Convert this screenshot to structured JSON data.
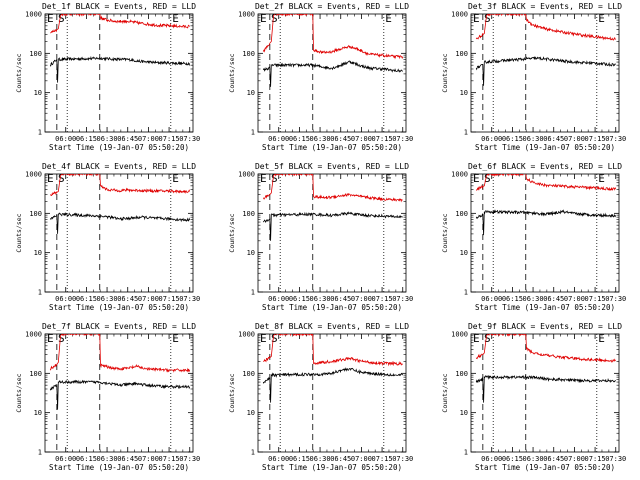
{
  "chart_data": [
    {
      "type": "line",
      "title": "Det_1f BLACK = Events, RED = LLD",
      "xlabel": "Start Time (19-Jan-07 05:50:20)",
      "ylabel": "Counts/sec",
      "x_ticks": [
        "06:00",
        "06:15",
        "06:30",
        "06:45",
        "07:00",
        "07:15",
        "07:30"
      ],
      "y_ticks": [
        "1",
        "10",
        "100",
        "1000"
      ],
      "xlim_min": [
        0,
        100
      ],
      "ylim": [
        1,
        1000
      ],
      "y_scale": "log",
      "markers": {
        "left": "E",
        "left2": "S",
        "right": "E"
      },
      "series": [
        {
          "name": "BLACK = Events",
          "color": "#000000",
          "x": [
            3.5,
            8,
            8.5,
            9,
            37,
            44,
            50,
            56,
            65,
            75,
            85,
            93,
            97.8
          ],
          "y": [
            50,
            70,
            18,
            70,
            75,
            72,
            70,
            70,
            62,
            58,
            57,
            55,
            55
          ]
        },
        {
          "name": "RED = LLD",
          "color": "#e00000",
          "x": [
            3.5,
            8,
            9,
            10.5,
            11.5,
            37,
            37.5,
            42,
            48,
            56,
            65,
            75,
            85,
            93,
            97.8
          ],
          "y": [
            330,
            400,
            420,
            900,
            1000,
            1000,
            800,
            700,
            650,
            650,
            580,
            520,
            500,
            480,
            480
          ]
        }
      ]
    },
    {
      "type": "line",
      "title": "Det_2f BLACK = Events, RED = LLD",
      "xlabel": "Start Time (19-Jan-07 05:50:20)",
      "ylabel": "Counts/sec",
      "x_ticks": [
        "06:00",
        "06:15",
        "06:30",
        "06:45",
        "07:00",
        "07:15",
        "07:30"
      ],
      "y_ticks": [
        "1",
        "10",
        "100",
        "1000"
      ],
      "xlim_min": [
        0,
        100
      ],
      "ylim": [
        1,
        1000
      ],
      "y_scale": "log",
      "markers": {
        "left": "E",
        "left2": "S",
        "right": "E"
      },
      "series": [
        {
          "name": "BLACK = Events",
          "color": "#000000",
          "x": [
            3.5,
            8,
            8.5,
            9,
            37,
            44,
            50,
            56,
            62,
            68,
            75,
            85,
            93,
            97.8
          ],
          "y": [
            38,
            42,
            14,
            50,
            50,
            45,
            42,
            50,
            62,
            50,
            42,
            40,
            36,
            36
          ]
        },
        {
          "name": "RED = LLD",
          "color": "#e00000",
          "x": [
            3.5,
            8,
            9,
            10.5,
            11.5,
            37,
            37.5,
            44,
            50,
            56,
            62,
            68,
            75,
            85,
            93,
            97.8
          ],
          "y": [
            110,
            180,
            200,
            900,
            1000,
            1000,
            120,
            105,
            110,
            130,
            150,
            125,
            95,
            88,
            82,
            82
          ]
        }
      ]
    },
    {
      "type": "line",
      "title": "Det_3f BLACK = Events, RED = LLD",
      "xlabel": "Start Time (19-Jan-07 05:50:20)",
      "ylabel": "Counts/sec",
      "x_ticks": [
        "06:00",
        "06:15",
        "06:30",
        "06:45",
        "07:00",
        "07:15",
        "07:30"
      ],
      "y_ticks": [
        "1",
        "10",
        "100",
        "1000"
      ],
      "xlim_min": [
        0,
        100
      ],
      "ylim": [
        1,
        1000
      ],
      "y_scale": "log",
      "markers": {
        "left": "E",
        "left2": "S",
        "right": "E"
      },
      "series": [
        {
          "name": "BLACK = Events",
          "color": "#000000",
          "x": [
            3.5,
            8,
            8.5,
            9,
            37,
            44,
            50,
            56,
            65,
            75,
            85,
            93,
            97.8
          ],
          "y": [
            42,
            50,
            15,
            60,
            72,
            75,
            72,
            68,
            62,
            58,
            56,
            52,
            52
          ]
        },
        {
          "name": "RED = LLD",
          "color": "#e00000",
          "x": [
            3.5,
            8,
            9,
            10.5,
            11.5,
            37,
            37.5,
            42,
            50,
            56,
            65,
            75,
            85,
            93,
            97.8
          ],
          "y": [
            230,
            300,
            320,
            900,
            1000,
            1000,
            700,
            520,
            420,
            380,
            330,
            290,
            260,
            240,
            230
          ]
        }
      ]
    },
    {
      "type": "line",
      "title": "Det_4f BLACK = Events, RED = LLD",
      "xlabel": "Start Time (19-Jan-07 05:50:20)",
      "ylabel": "Counts/sec",
      "x_ticks": [
        "06:00",
        "06:15",
        "06:30",
        "06:45",
        "07:00",
        "07:15",
        "07:30"
      ],
      "y_ticks": [
        "1",
        "10",
        "100",
        "1000"
      ],
      "xlim_min": [
        0,
        100
      ],
      "ylim": [
        1,
        1000
      ],
      "y_scale": "log",
      "markers": {
        "left": "E",
        "left2": "S",
        "right": "E"
      },
      "series": [
        {
          "name": "BLACK = Events",
          "color": "#000000",
          "x": [
            3.5,
            8,
            8.5,
            9,
            37,
            44,
            50,
            56,
            65,
            75,
            85,
            93,
            97.8
          ],
          "y": [
            70,
            90,
            30,
            95,
            85,
            80,
            72,
            74,
            80,
            75,
            72,
            68,
            68
          ]
        },
        {
          "name": "RED = LLD",
          "color": "#e00000",
          "x": [
            3.5,
            8,
            9,
            10.5,
            11.5,
            37,
            37.5,
            42,
            50,
            56,
            65,
            75,
            85,
            93,
            97.8
          ],
          "y": [
            300,
            340,
            360,
            900,
            1000,
            1000,
            500,
            400,
            380,
            390,
            380,
            370,
            370,
            360,
            360
          ]
        }
      ]
    },
    {
      "type": "line",
      "title": "Det_5f BLACK = Events, RED = LLD",
      "xlabel": "Start Time (19-Jan-07 05:50:20)",
      "ylabel": "Counts/sec",
      "x_ticks": [
        "06:00",
        "06:15",
        "06:30",
        "06:45",
        "07:00",
        "07:15",
        "07:30"
      ],
      "y_ticks": [
        "1",
        "10",
        "100",
        "1000"
      ],
      "xlim_min": [
        0,
        100
      ],
      "ylim": [
        1,
        1000
      ],
      "y_scale": "log",
      "markers": {
        "left": "E",
        "left2": "S",
        "right": "E"
      },
      "series": [
        {
          "name": "BLACK = Events",
          "color": "#000000",
          "x": [
            3.5,
            8,
            8.5,
            9,
            37,
            44,
            50,
            56,
            62,
            68,
            75,
            85,
            93,
            97.8
          ],
          "y": [
            60,
            72,
            20,
            90,
            95,
            92,
            88,
            95,
            100,
            92,
            88,
            85,
            82,
            82
          ]
        },
        {
          "name": "RED = LLD",
          "color": "#e00000",
          "x": [
            3.5,
            8,
            9,
            10.5,
            11.5,
            37,
            37.5,
            44,
            50,
            56,
            62,
            68,
            75,
            85,
            93,
            97.8
          ],
          "y": [
            240,
            300,
            330,
            900,
            1000,
            1000,
            270,
            250,
            260,
            280,
            300,
            270,
            250,
            230,
            220,
            220
          ]
        }
      ]
    },
    {
      "type": "line",
      "title": "Det_6f BLACK = Events, RED = LLD",
      "xlabel": "Start Time (19-Jan-07 05:50:20)",
      "ylabel": "Counts/sec",
      "x_ticks": [
        "06:00",
        "06:15",
        "06:30",
        "06:45",
        "07:00",
        "07:15",
        "07:30"
      ],
      "y_ticks": [
        "1",
        "10",
        "100",
        "1000"
      ],
      "xlim_min": [
        0,
        100
      ],
      "ylim": [
        1,
        1000
      ],
      "y_scale": "log",
      "markers": {
        "left": "E",
        "left2": "S",
        "right": "E"
      },
      "series": [
        {
          "name": "BLACK = Events",
          "color": "#000000",
          "x": [
            3.5,
            8,
            8.5,
            9,
            37,
            44,
            50,
            56,
            62,
            68,
            75,
            85,
            93,
            97.8
          ],
          "y": [
            75,
            95,
            28,
            110,
            105,
            100,
            95,
            100,
            110,
            100,
            95,
            90,
            88,
            88
          ]
        },
        {
          "name": "RED = LLD",
          "color": "#e00000",
          "x": [
            3.5,
            8,
            9,
            10.5,
            11.5,
            37,
            37.5,
            42,
            50,
            56,
            65,
            75,
            85,
            93,
            97.8
          ],
          "y": [
            400,
            480,
            500,
            900,
            1000,
            1000,
            750,
            600,
            520,
            500,
            480,
            460,
            440,
            420,
            420
          ]
        }
      ]
    },
    {
      "type": "line",
      "title": "Det_7f BLACK = Events, RED = LLD",
      "xlabel": "Start Time (19-Jan-07 05:50:20)",
      "ylabel": "Counts/sec",
      "x_ticks": [
        "06:00",
        "06:15",
        "06:30",
        "06:45",
        "07:00",
        "07:15",
        "07:30"
      ],
      "y_ticks": [
        "1",
        "10",
        "100",
        "1000"
      ],
      "xlim_min": [
        0,
        100
      ],
      "ylim": [
        1,
        1000
      ],
      "y_scale": "log",
      "markers": {
        "left": "E",
        "left2": "S",
        "right": "E"
      },
      "series": [
        {
          "name": "BLACK = Events",
          "color": "#000000",
          "x": [
            3.5,
            8,
            8.5,
            9,
            37,
            44,
            50,
            56,
            62,
            68,
            75,
            85,
            93,
            97.8
          ],
          "y": [
            40,
            50,
            12,
            60,
            60,
            55,
            50,
            52,
            55,
            50,
            48,
            46,
            45,
            45
          ]
        },
        {
          "name": "RED = LLD",
          "color": "#e00000",
          "x": [
            3.5,
            8,
            9,
            10.5,
            11.5,
            37,
            37.5,
            44,
            50,
            56,
            62,
            68,
            75,
            85,
            93,
            97.8
          ],
          "y": [
            130,
            170,
            190,
            900,
            1000,
            1000,
            160,
            140,
            130,
            135,
            150,
            130,
            125,
            120,
            120,
            120
          ]
        }
      ]
    },
    {
      "type": "line",
      "title": "Det_8f BLACK = Events, RED = LLD",
      "xlabel": "Start Time (19-Jan-07 05:50:20)",
      "ylabel": "Counts/sec",
      "x_ticks": [
        "06:00",
        "06:15",
        "06:30",
        "06:45",
        "07:00",
        "07:15",
        "07:30"
      ],
      "y_ticks": [
        "1",
        "10",
        "100",
        "1000"
      ],
      "xlim_min": [
        0,
        100
      ],
      "ylim": [
        1,
        1000
      ],
      "y_scale": "log",
      "markers": {
        "left": "E",
        "left2": "S",
        "right": "E"
      },
      "series": [
        {
          "name": "BLACK = Events",
          "color": "#000000",
          "x": [
            3.5,
            8,
            8.5,
            9,
            37,
            44,
            50,
            56,
            62,
            68,
            75,
            85,
            93,
            97.8
          ],
          "y": [
            60,
            75,
            18,
            90,
            95,
            95,
            100,
            120,
            130,
            110,
            100,
            95,
            90,
            90
          ]
        },
        {
          "name": "RED = LLD",
          "color": "#e00000",
          "x": [
            3.5,
            8,
            9,
            10.5,
            11.5,
            37,
            37.5,
            44,
            50,
            56,
            62,
            68,
            75,
            85,
            93,
            97.8
          ],
          "y": [
            200,
            250,
            270,
            900,
            1000,
            1000,
            180,
            190,
            200,
            220,
            240,
            210,
            190,
            180,
            175,
            175
          ]
        }
      ]
    },
    {
      "type": "line",
      "title": "Det_9f BLACK = Events, RED = LLD",
      "xlabel": "Start Time (19-Jan-07 05:50:20)",
      "ylabel": "Counts/sec",
      "x_ticks": [
        "06:00",
        "06:15",
        "06:30",
        "06:45",
        "07:00",
        "07:15",
        "07:30"
      ],
      "y_ticks": [
        "1",
        "10",
        "100",
        "1000"
      ],
      "xlim_min": [
        0,
        100
      ],
      "ylim": [
        1,
        1000
      ],
      "y_scale": "log",
      "markers": {
        "left": "E",
        "left2": "S",
        "right": "E"
      },
      "series": [
        {
          "name": "BLACK = Events",
          "color": "#000000",
          "x": [
            3.5,
            8,
            8.5,
            9,
            37,
            44,
            50,
            56,
            65,
            75,
            85,
            93,
            97.8
          ],
          "y": [
            60,
            70,
            18,
            80,
            80,
            78,
            72,
            70,
            68,
            66,
            65,
            65,
            65
          ]
        },
        {
          "name": "RED = LLD",
          "color": "#e00000",
          "x": [
            3.5,
            8,
            9,
            10.5,
            11.5,
            37,
            37.5,
            42,
            50,
            56,
            65,
            75,
            85,
            93,
            97.8
          ],
          "y": [
            250,
            300,
            330,
            900,
            1000,
            1000,
            420,
            330,
            290,
            270,
            250,
            230,
            220,
            210,
            210
          ]
        }
      ]
    }
  ]
}
